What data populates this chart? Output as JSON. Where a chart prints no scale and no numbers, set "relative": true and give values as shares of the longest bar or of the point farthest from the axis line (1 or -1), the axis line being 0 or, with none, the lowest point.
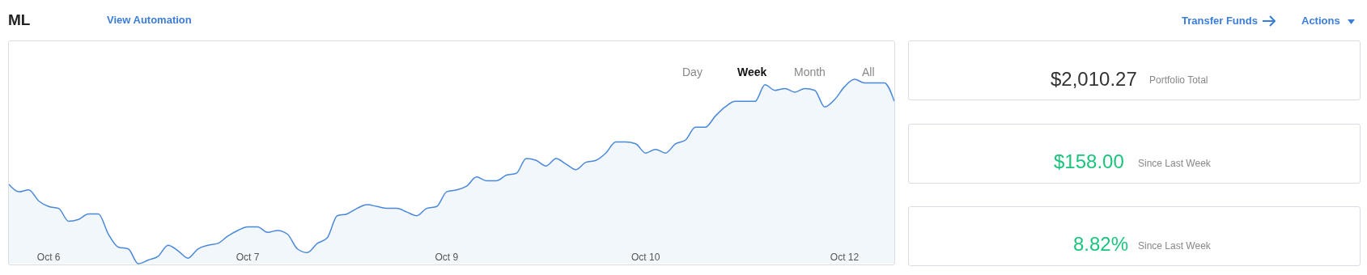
{
  "chart_data": {
    "type": "area",
    "title": "ML",
    "relative": true,
    "color": "#4a88d8",
    "grid": false,
    "legend": false,
    "categories": [
      null,
      null,
      null,
      null,
      "Oct 6",
      null,
      null,
      null,
      null,
      null,
      null,
      null,
      null,
      null,
      null,
      null,
      null,
      null,
      null,
      null,
      null,
      null,
      null,
      null,
      "Oct 7",
      null,
      null,
      null,
      null,
      null,
      null,
      null,
      null,
      null,
      null,
      null,
      null,
      null,
      null,
      null,
      null,
      null,
      null,
      null,
      "Oct 9",
      null,
      null,
      null,
      null,
      null,
      null,
      null,
      null,
      null,
      null,
      null,
      null,
      null,
      null,
      null,
      null,
      null,
      null,
      null,
      "Oct 10",
      null,
      null,
      null,
      null,
      null,
      null,
      null,
      null,
      null,
      null,
      null,
      null,
      null,
      null,
      null,
      null,
      null,
      null,
      null,
      "Oct 12",
      null,
      null,
      null,
      null,
      null
    ],
    "values": [
      0.43,
      0.39,
      0.4,
      0.34,
      0.31,
      0.3,
      0.23,
      0.24,
      0.27,
      0.27,
      0.16,
      0.09,
      0.08,
      0,
      0.02,
      0.04,
      0.1,
      0.07,
      0.03,
      0.08,
      0.1,
      0.11,
      0.15,
      0.18,
      0.2,
      0.2,
      0.17,
      0.18,
      0.16,
      0.08,
      0.06,
      0.11,
      0.14,
      0.26,
      0.27,
      0.3,
      0.32,
      0.31,
      0.3,
      0.3,
      0.28,
      0.26,
      0.3,
      0.31,
      0.39,
      0.4,
      0.42,
      0.47,
      0.45,
      0.45,
      0.48,
      0.49,
      0.57,
      0.56,
      0.53,
      0.57,
      0.54,
      0.51,
      0.55,
      0.56,
      0.6,
      0.66,
      0.66,
      0.65,
      0.6,
      0.62,
      0.6,
      0.65,
      0.67,
      0.74,
      0.74,
      0.8,
      0.85,
      0.88,
      0.88,
      0.88,
      0.97,
      0.94,
      0.95,
      0.93,
      0.95,
      0.94,
      0.85,
      0.89,
      0.96,
      1,
      0.98,
      0.98,
      0.98,
      0.88
    ],
    "annotations": [
      "View Automation",
      "Transfer Funds",
      "Actions",
      "Day",
      "Week",
      "Month",
      "All",
      "$2,010.27",
      "Portfolio Total",
      "$158.00",
      "Since Last Week",
      "8.82%",
      "Since Last Week"
    ]
  }
}
